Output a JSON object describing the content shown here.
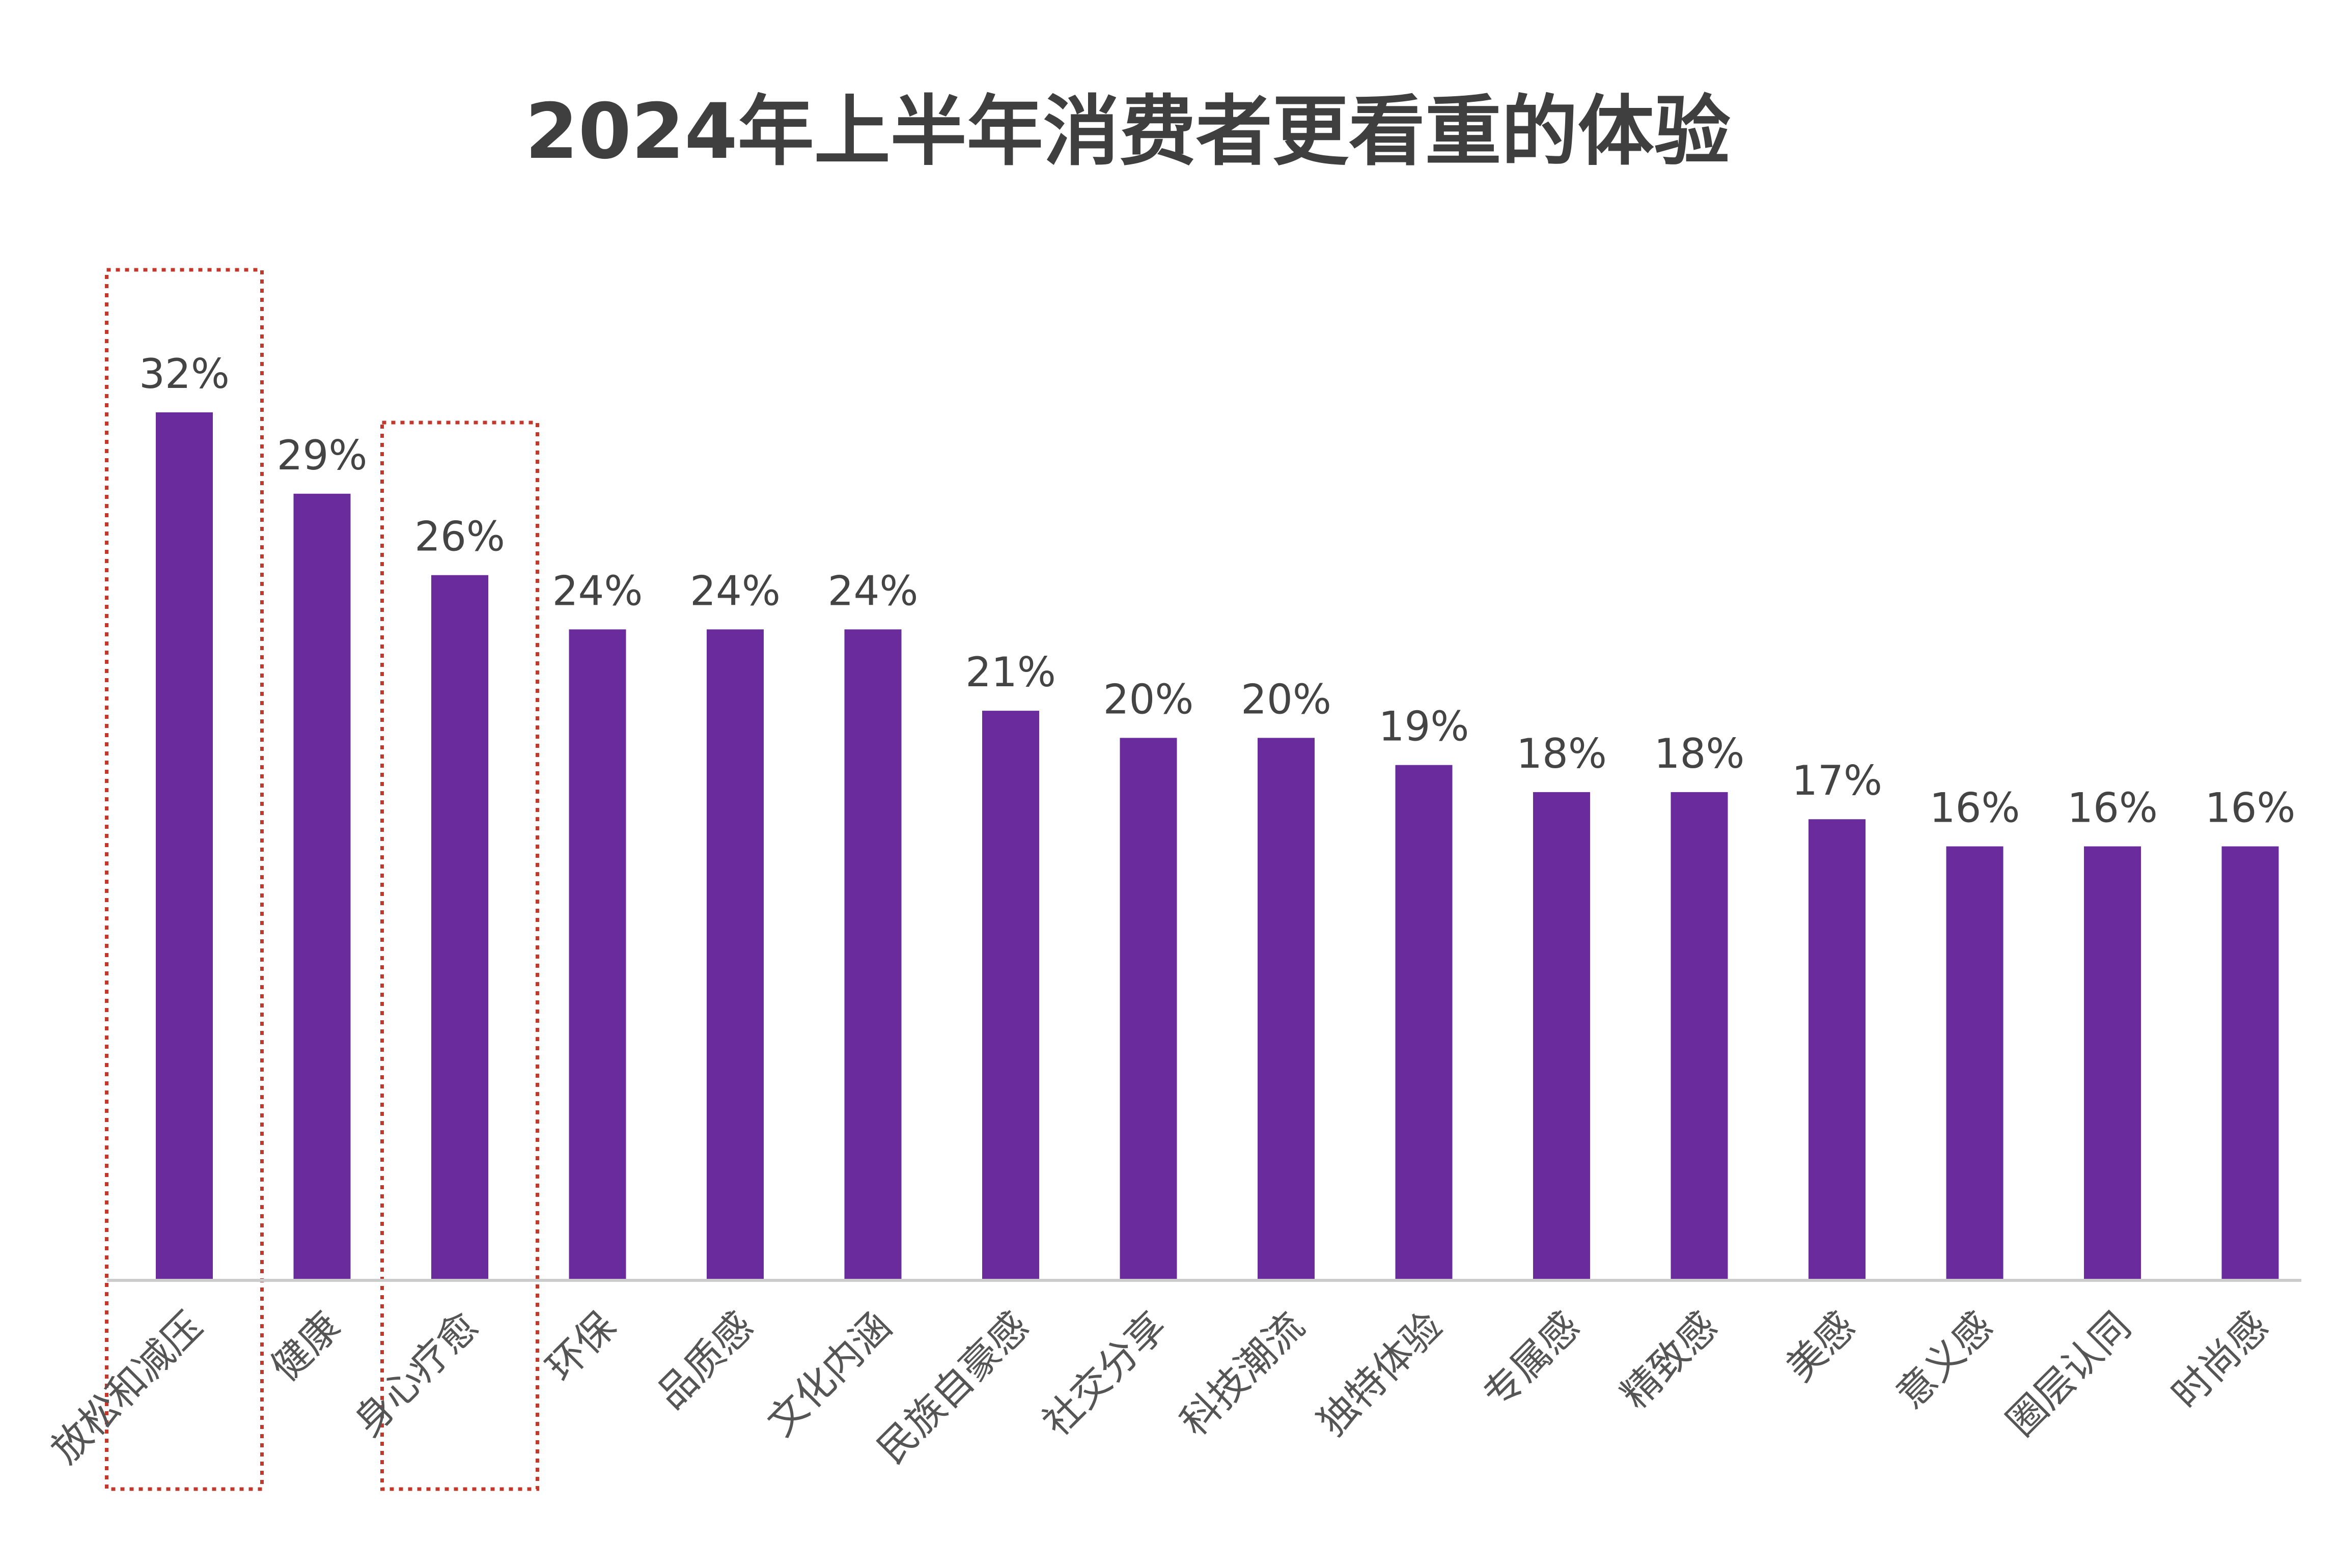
{
  "chart_data": {
    "type": "bar",
    "title": "2024年上半年消费者更看重的体验",
    "xlabel": "",
    "ylabel": "",
    "ylim": [
      0,
      32
    ],
    "grid": false,
    "legend": "none",
    "categories": [
      "放松和减压",
      "健康",
      "身心疗愈",
      "环保",
      "品质感",
      "文化内涵",
      "民族自豪感",
      "社交分享",
      "科技潮流",
      "独特体验",
      "专属感",
      "精致感",
      "美感",
      "意义感",
      "圈层认同",
      "时尚感"
    ],
    "values": [
      32,
      29,
      26,
      24,
      24,
      24,
      21,
      20,
      20,
      19,
      18,
      18,
      17,
      16,
      16,
      16
    ],
    "value_labels": [
      "32%",
      "29%",
      "26%",
      "24%",
      "24%",
      "24%",
      "21%",
      "20%",
      "20%",
      "19%",
      "18%",
      "18%",
      "17%",
      "16%",
      "16%",
      "16%"
    ],
    "highlighted_categories": [
      "放松和减压",
      "身心疗愈"
    ],
    "bar_color": "#6a2c9c",
    "highlight_color": "#c0392b"
  }
}
